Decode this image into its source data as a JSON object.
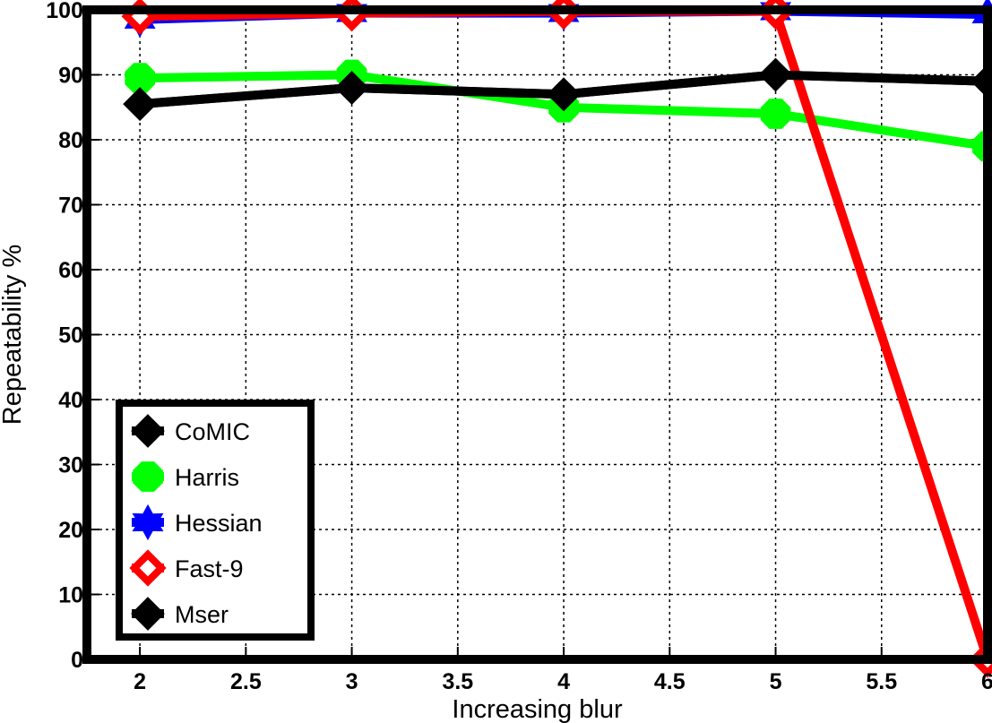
{
  "chart_data": {
    "type": "line",
    "xlabel": "Increasing blur",
    "ylabel": "Repeatability %",
    "xlim": [
      1.75,
      6
    ],
    "ylim": [
      0,
      100
    ],
    "xticks": [
      "2",
      "2.5",
      "3",
      "3.5",
      "4",
      "4.5",
      "5",
      "5.5",
      "6"
    ],
    "xtick_values": [
      2,
      2.5,
      3,
      3.5,
      4,
      4.5,
      5,
      5.5,
      6
    ],
    "yticks": [
      "0",
      "10",
      "20",
      "30",
      "40",
      "50",
      "60",
      "70",
      "80",
      "90",
      "100"
    ],
    "ytick_values": [
      0,
      10,
      20,
      30,
      40,
      50,
      60,
      70,
      80,
      90,
      100
    ],
    "grid": true,
    "legend_position": "bottom-left",
    "x": [
      2,
      3,
      4,
      5,
      6
    ],
    "series": [
      {
        "name": "CoMIC",
        "color": "#000000",
        "marker": "diamond",
        "values": [
          85.5,
          88,
          87,
          90,
          89
        ]
      },
      {
        "name": "Harris",
        "color": "#00ff00",
        "marker": "octagon",
        "values": [
          89.5,
          90,
          85,
          84,
          79
        ]
      },
      {
        "name": "Hessian",
        "color": "#0000ff",
        "marker": "star",
        "values": [
          98.5,
          99.5,
          99.5,
          99.8,
          99.3
        ]
      },
      {
        "name": "Fast-9",
        "color": "#ff0000",
        "marker": "diamond-open",
        "values": [
          99,
          99.5,
          99.8,
          99.8,
          0
        ]
      },
      {
        "name": "Mser",
        "color": "#000000",
        "marker": "diamond",
        "values": [
          85.5,
          88,
          87,
          90,
          89
        ]
      }
    ]
  }
}
